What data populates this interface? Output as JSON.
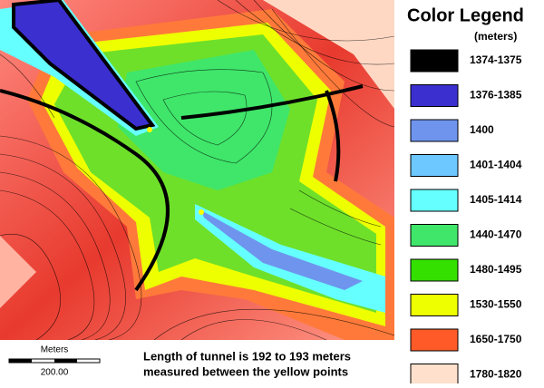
{
  "legend": {
    "title": "Color Legend",
    "unit": "(meters)",
    "items": [
      {
        "label": "1374-1375",
        "color": "#000000"
      },
      {
        "label": "1376-1385",
        "color": "#3b2fd0"
      },
      {
        "label": "1400",
        "color": "#6f94ee"
      },
      {
        "label": "1401-1404",
        "color": "#6cc8ff"
      },
      {
        "label": "1405-1414",
        "color": "#66ffff"
      },
      {
        "label": "1440-1470",
        "color": "#3fe66a"
      },
      {
        "label": "1480-1495",
        "color": "#33e000"
      },
      {
        "label": "1530-1550",
        "color": "#eeff00"
      },
      {
        "label": "1650-1750",
        "color": "#ff5a28"
      },
      {
        "label": "1780-1820",
        "color": "#ffe0cc"
      }
    ]
  },
  "scale_bar": {
    "label": "Meters",
    "value": "200.00"
  },
  "caption": [
    "Length of tunnel is 192 to 193 meters",
    "measured between the yellow points"
  ]
}
